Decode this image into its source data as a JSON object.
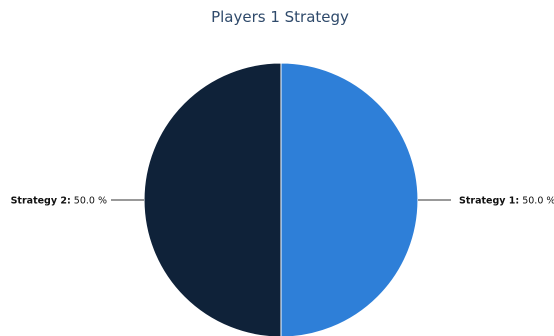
{
  "chart_data": {
    "type": "pie",
    "title": "Players 1 Strategy",
    "slices": [
      {
        "name": "Strategy 1",
        "value": 50.0,
        "label_value": "50.0 %",
        "color": "#2e7fd8"
      },
      {
        "name": "Strategy 2",
        "value": 50.0,
        "label_value": "50.0 %",
        "color": "#0f2239"
      }
    ],
    "start_angle_deg": 0,
    "direction": "clockwise",
    "data_labels": true
  }
}
